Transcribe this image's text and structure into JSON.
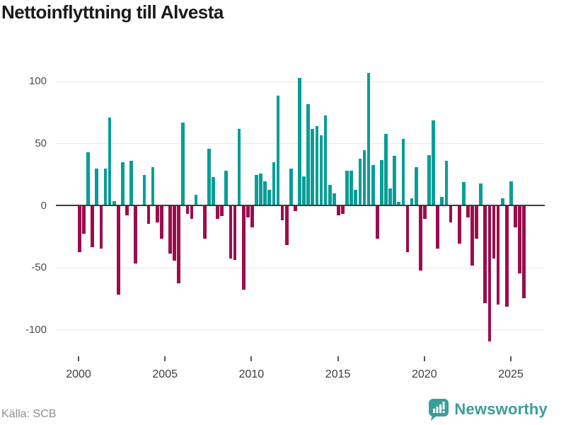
{
  "title": "Nettoinflyttning till Alvesta",
  "source": "Källa: SCB",
  "branding": {
    "name": "Newsworthy",
    "logo_icon": "bar-chart-speech-bubble"
  },
  "colors": {
    "positive_bar": "#089e97",
    "negative_bar": "#9c0d4d",
    "zero_axis": "#3d3d3d",
    "gridline": "#e8e8e8",
    "brand_teal": "#3c9d96",
    "title_text": "#1a1a1a",
    "axis_text": "#4d4d4d",
    "source_text": "#8f8f94"
  },
  "chart_data": {
    "type": "bar",
    "title": "Nettoinflyttning till Alvesta",
    "xlabel": "",
    "ylabel": "",
    "frequency": "quarterly",
    "start_year": 2000,
    "end_year": 2025,
    "x_tick_labels": [
      "2000",
      "2005",
      "2010",
      "2015",
      "2020",
      "2025"
    ],
    "y_ticks": [
      100,
      50,
      0,
      -50,
      -100
    ],
    "y_tick_labels": [
      "100",
      "50",
      "0",
      "-50",
      "-100"
    ],
    "ylim": [
      -115,
      112
    ],
    "grid": true,
    "legend": "none",
    "series": [
      {
        "name": "Nettoinflyttning",
        "values": [
          -37,
          -22,
          42,
          -33,
          29,
          -34,
          29,
          70,
          3,
          -71,
          34,
          -7,
          35,
          -46,
          0,
          24,
          -14,
          30,
          -13,
          -26,
          0,
          -38,
          -44,
          -62,
          66,
          -6,
          -10,
          8,
          0,
          -26,
          45,
          22,
          -10,
          -8,
          27,
          -42,
          -43,
          61,
          -67,
          -9,
          -17,
          24,
          25,
          19,
          12,
          34,
          88,
          -11,
          -31,
          29,
          -4,
          102,
          23,
          81,
          61,
          63,
          56,
          72,
          16,
          9,
          -7,
          -6,
          27,
          27,
          12,
          37,
          44,
          106,
          32,
          -26,
          36,
          57,
          13,
          39,
          2,
          53,
          -37,
          5,
          30,
          -52,
          -10,
          40,
          68,
          -34,
          6,
          35,
          -13,
          0,
          -30,
          18,
          -9,
          -48,
          -26,
          17,
          -78,
          -109,
          -42,
          -79,
          5,
          -81,
          19,
          -17,
          -54,
          -74
        ]
      }
    ]
  }
}
